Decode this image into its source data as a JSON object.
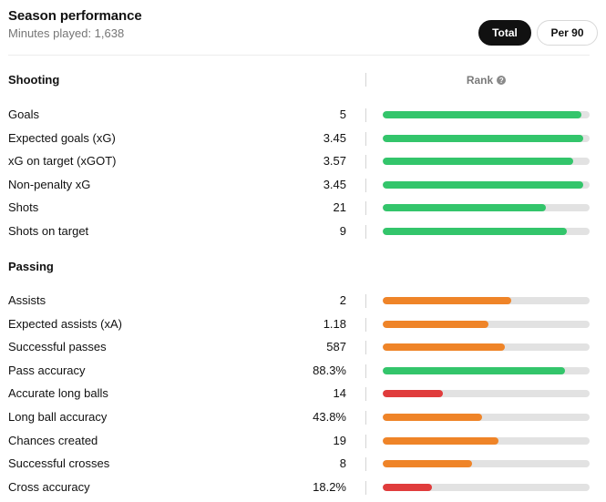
{
  "header": {
    "title": "Season performance",
    "subtitle": "Minutes played: 1,638",
    "toggle_total": "Total",
    "toggle_per90": "Per 90"
  },
  "colors": {
    "high": "#33c56b",
    "mid": "#ef8428",
    "low": "#e03c3c",
    "track": "#e2e2e2"
  },
  "rank_header": {
    "label": "Rank",
    "icon": "help-icon"
  },
  "sections": [
    {
      "title": "Shooting",
      "rows": [
        {
          "label": "Goals",
          "value": "5",
          "rank": 0.96,
          "level": "high"
        },
        {
          "label": "Expected goals (xG)",
          "value": "3.45",
          "rank": 0.97,
          "level": "high"
        },
        {
          "label": "xG on target (xGOT)",
          "value": "3.57",
          "rank": 0.92,
          "level": "high"
        },
        {
          "label": "Non-penalty xG",
          "value": "3.45",
          "rank": 0.97,
          "level": "high"
        },
        {
          "label": "Shots",
          "value": "21",
          "rank": 0.79,
          "level": "high"
        },
        {
          "label": "Shots on target",
          "value": "9",
          "rank": 0.89,
          "level": "high"
        }
      ]
    },
    {
      "title": "Passing",
      "rows": [
        {
          "label": "Assists",
          "value": "2",
          "rank": 0.62,
          "level": "mid"
        },
        {
          "label": "Expected assists (xA)",
          "value": "1.18",
          "rank": 0.51,
          "level": "mid"
        },
        {
          "label": "Successful passes",
          "value": "587",
          "rank": 0.59,
          "level": "mid"
        },
        {
          "label": "Pass accuracy",
          "value": "88.3%",
          "rank": 0.88,
          "level": "high"
        },
        {
          "label": "Accurate long balls",
          "value": "14",
          "rank": 0.29,
          "level": "low"
        },
        {
          "label": "Long ball accuracy",
          "value": "43.8%",
          "rank": 0.48,
          "level": "mid"
        },
        {
          "label": "Chances created",
          "value": "19",
          "rank": 0.56,
          "level": "mid"
        },
        {
          "label": "Successful crosses",
          "value": "8",
          "rank": 0.43,
          "level": "mid"
        },
        {
          "label": "Cross accuracy",
          "value": "18.2%",
          "rank": 0.24,
          "level": "low"
        }
      ]
    }
  ]
}
